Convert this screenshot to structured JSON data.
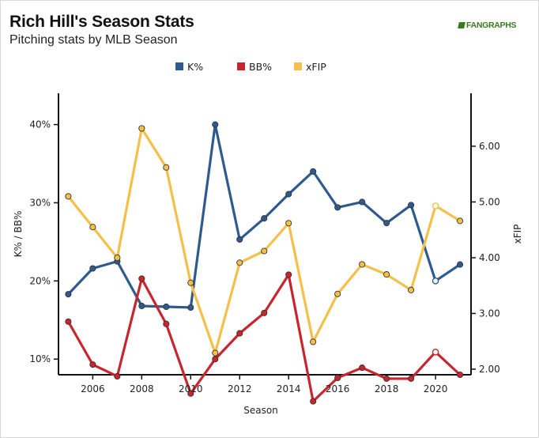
{
  "header": {
    "title": "Rich Hill's Season Stats",
    "subtitle": "Pitching stats by MLB Season",
    "logo_text": "FANGRAPHS"
  },
  "colors": {
    "k_pct": "#2e5b8f",
    "bb_pct": "#c8262e",
    "xfip": "#f5c04a",
    "axis": "#111111"
  },
  "chart_data": {
    "type": "line",
    "x": [
      2005,
      2006,
      2007,
      2008,
      2009,
      2010,
      2011,
      2012,
      2013,
      2014,
      2015,
      2016,
      2017,
      2018,
      2019,
      2020,
      2021
    ],
    "xlabel": "Season",
    "x_ticks": [
      "2006",
      "2008",
      "2010",
      "2012",
      "2014",
      "2016",
      "2018",
      "2020"
    ],
    "y_left_label": "K% / BB%",
    "y_left_ticks": [
      "10%",
      "20%",
      "30%",
      "40%"
    ],
    "y_left_range": [
      0.08,
      0.44
    ],
    "y_right_label": "xFIP",
    "y_right_ticks": [
      "2.00",
      "3.00",
      "4.00",
      "5.00",
      "6.00"
    ],
    "y_right_range": [
      1.9,
      6.95
    ],
    "legend_position": "top-center",
    "grid": false,
    "series": [
      {
        "name": "K%",
        "axis": "left",
        "color": "#2e5b8f",
        "values": [
          0.183,
          0.216,
          0.225,
          0.168,
          0.167,
          0.166,
          0.4,
          0.253,
          0.28,
          0.311,
          0.34,
          0.294,
          0.301,
          0.274,
          0.297,
          0.2,
          0.221
        ]
      },
      {
        "name": "BB%",
        "axis": "left",
        "color": "#c8262e",
        "values": [
          0.148,
          0.093,
          0.078,
          0.203,
          0.145,
          0.056,
          0.1,
          0.133,
          0.159,
          0.208,
          0.046,
          0.076,
          0.089,
          0.075,
          0.075,
          0.109,
          0.08
        ]
      },
      {
        "name": "xFIP",
        "axis": "right",
        "color": "#f5c04a",
        "values": [
          5.1,
          4.55,
          4.0,
          6.32,
          5.62,
          3.55,
          2.29,
          3.91,
          4.12,
          4.62,
          2.49,
          3.35,
          3.88,
          3.7,
          3.42,
          4.93,
          4.66
        ]
      }
    ]
  }
}
